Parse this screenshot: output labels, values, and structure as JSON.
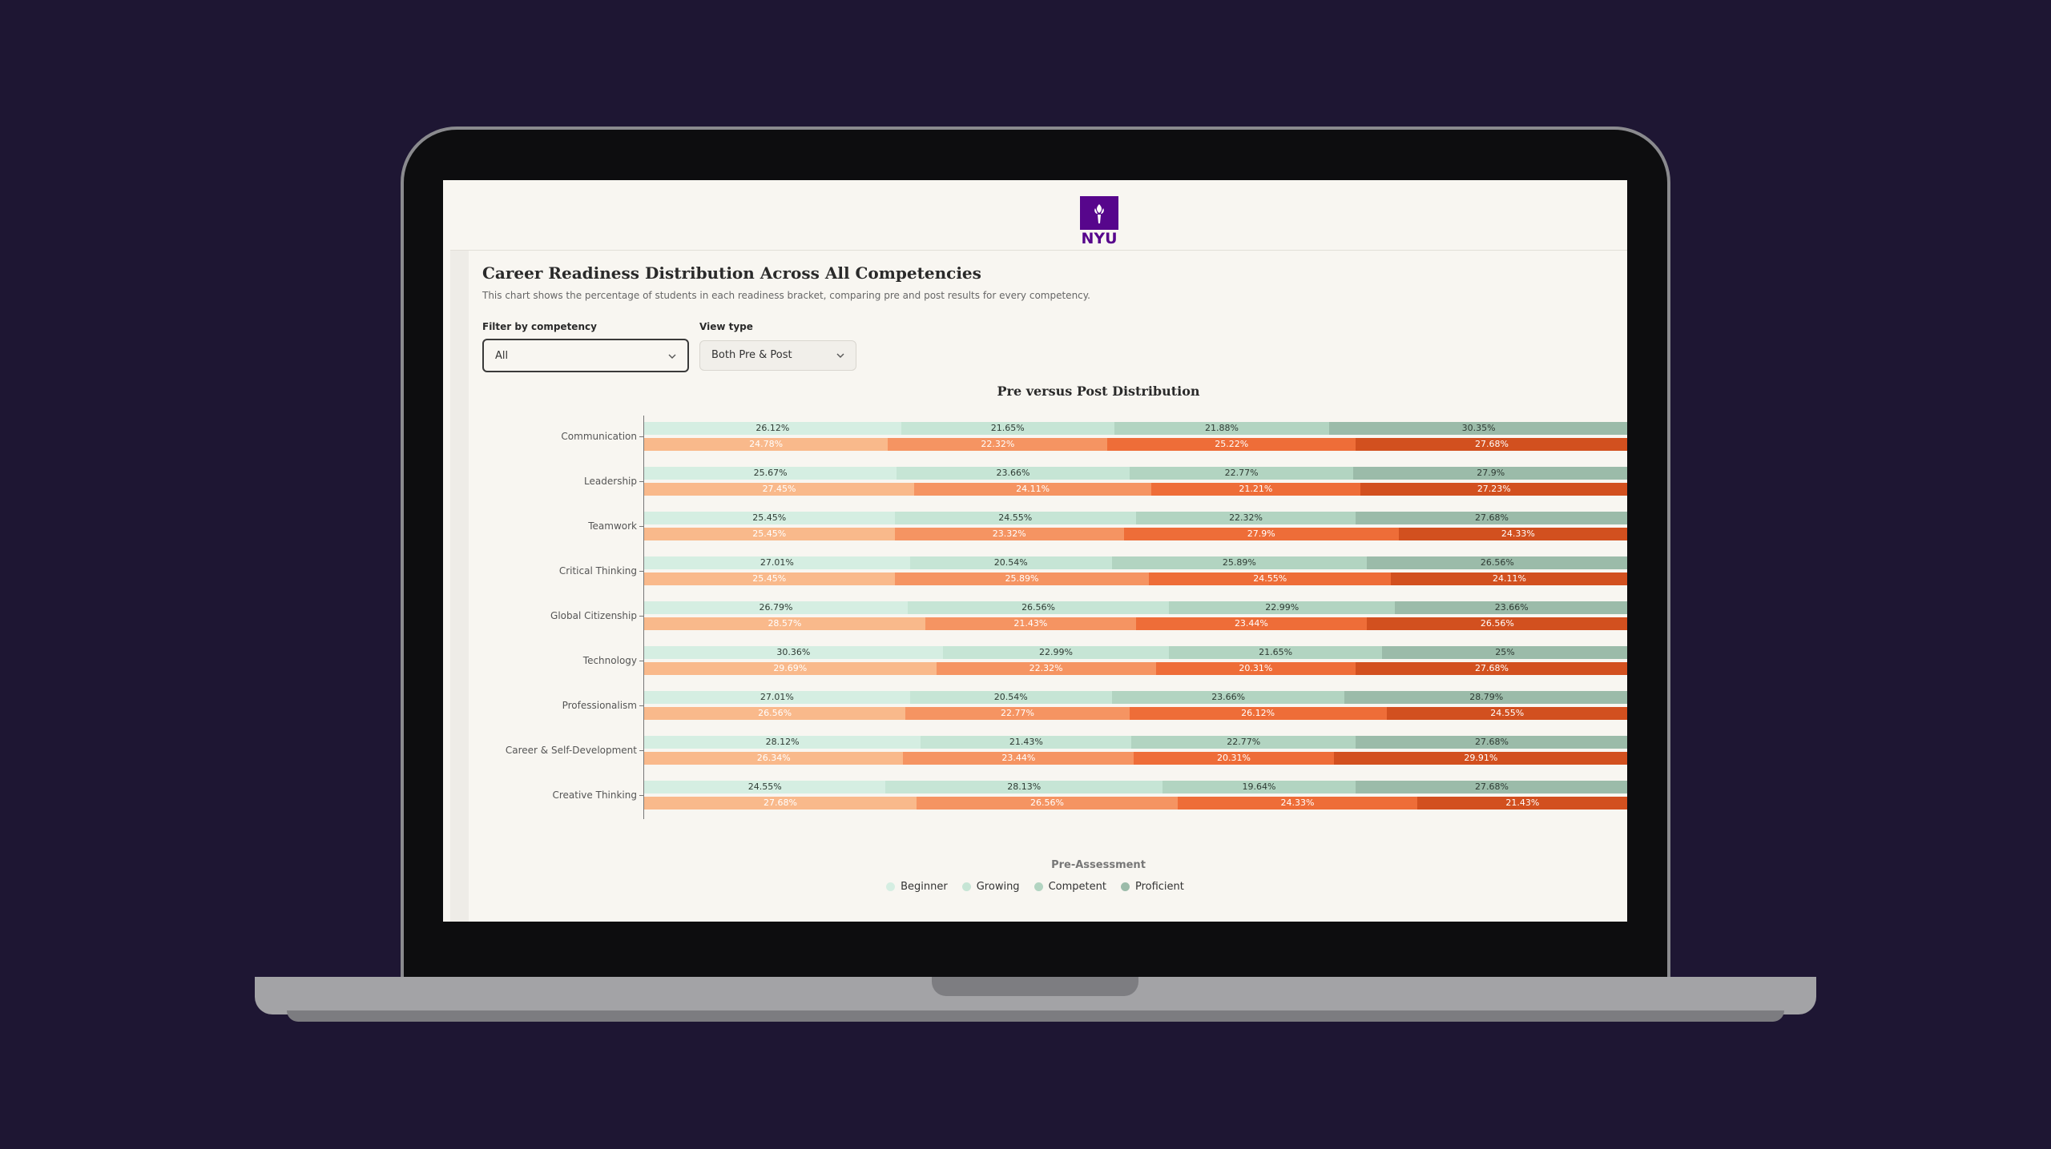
{
  "header": {
    "logo_text": "NYU"
  },
  "page": {
    "title": "Career Readiness Distribution Across All Competencies",
    "subtitle": "This chart shows the percentage of students in each readiness bracket, comparing pre and post results for every competency.",
    "filters": [
      {
        "label": "Filter by competency",
        "value": "All"
      },
      {
        "label": "View type",
        "value": "Both Pre & Post"
      }
    ]
  },
  "chart_data": {
    "type": "bar",
    "orientation": "horizontal",
    "stacked": true,
    "title": "Pre versus Post Distribution",
    "categories": [
      "Communication",
      "Leadership",
      "Teamwork",
      "Critical Thinking",
      "Global Citizenship",
      "Technology",
      "Professionalism",
      "Career & Self-Development",
      "Creative Thinking"
    ],
    "xlim": [
      0,
      100
    ],
    "pre": {
      "legend_title": "Pre-Assessment",
      "series": [
        {
          "name": "Beginner",
          "color": "#d5eee2",
          "values": [
            26.12,
            25.67,
            25.45,
            27.01,
            26.79,
            30.36,
            27.01,
            28.12,
            24.55
          ],
          "value_labels": [
            "26.12%",
            "25.67%",
            "25.45%",
            "27.01%",
            "26.79%",
            "30.36%",
            "27.01%",
            "28.12%",
            "24.55%"
          ]
        },
        {
          "name": "Growing",
          "color": "#c6e5d5",
          "values": [
            21.65,
            23.66,
            24.55,
            20.54,
            26.56,
            22.99,
            20.54,
            21.43,
            28.13
          ],
          "value_labels": [
            "21.65%",
            "23.66%",
            "24.55%",
            "20.54%",
            "26.56%",
            "22.99%",
            "20.54%",
            "21.43%",
            "28.13%"
          ]
        },
        {
          "name": "Competent",
          "color": "#b2d4c1",
          "values": [
            21.88,
            22.77,
            22.32,
            25.89,
            22.99,
            21.65,
            23.66,
            22.77,
            19.64
          ],
          "value_labels": [
            "21.88%",
            "22.77%",
            "22.32%",
            "25.89%",
            "22.99%",
            "21.65%",
            "23.66%",
            "22.77%",
            "19.64%"
          ]
        },
        {
          "name": "Proficient",
          "color": "#9bbba9",
          "values": [
            30.35,
            27.9,
            27.68,
            26.56,
            23.66,
            25,
            28.79,
            27.68,
            27.68
          ],
          "value_labels": [
            "30.35%",
            "27.9%",
            "27.68%",
            "26.56%",
            "23.66%",
            "25%",
            "28.79%",
            "27.68%",
            "27.68%"
          ]
        }
      ]
    },
    "post": {
      "series": [
        {
          "color": "#f9b98b",
          "values": [
            24.78,
            27.45,
            25.45,
            25.45,
            28.57,
            29.69,
            26.56,
            26.34,
            27.68
          ],
          "value_labels": [
            "24.78%",
            "27.45%",
            "25.45%",
            "25.45%",
            "28.57%",
            "29.69%",
            "26.56%",
            "26.34%",
            "27.68%"
          ]
        },
        {
          "color": "#f59462",
          "values": [
            22.32,
            24.11,
            23.32,
            25.89,
            21.43,
            22.32,
            22.77,
            23.44,
            26.56
          ],
          "value_labels": [
            "22.32%",
            "24.11%",
            "23.32%",
            "25.89%",
            "21.43%",
            "22.32%",
            "22.77%",
            "23.44%",
            "26.56%"
          ]
        },
        {
          "color": "#ee6d38",
          "values": [
            25.22,
            21.21,
            27.9,
            24.55,
            23.44,
            20.31,
            26.12,
            20.31,
            24.33
          ],
          "value_labels": [
            "25.22%",
            "21.21%",
            "27.9%",
            "24.55%",
            "23.44%",
            "20.31%",
            "26.12%",
            "20.31%",
            "24.33%"
          ]
        },
        {
          "color": "#d2501f",
          "values": [
            27.68,
            27.23,
            24.33,
            24.11,
            26.56,
            27.68,
            24.55,
            29.91,
            21.43
          ],
          "value_labels": [
            "27.68%",
            "27.23%",
            "24.33%",
            "24.11%",
            "26.56%",
            "27.68%",
            "24.55%",
            "29.91%",
            "21.43%"
          ]
        }
      ]
    }
  }
}
